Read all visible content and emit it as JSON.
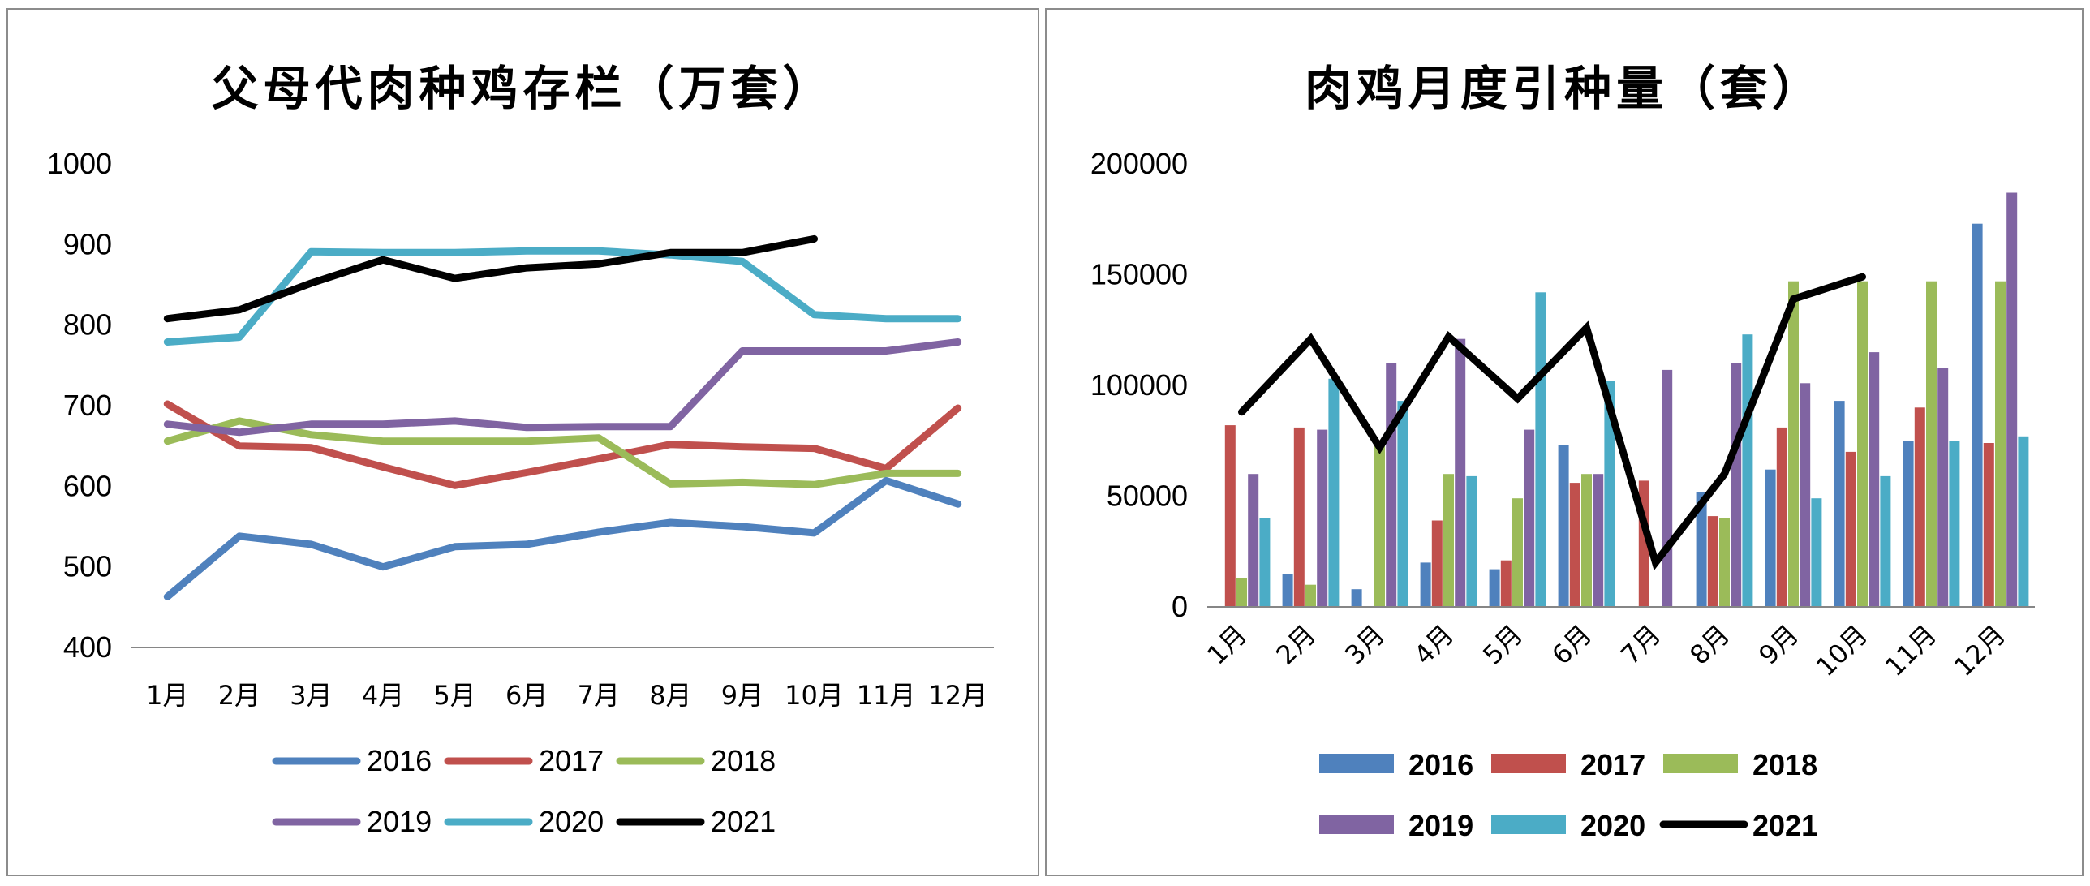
{
  "chart_data": [
    {
      "type": "line",
      "title": "父母代肉种鸡存栏（万套）",
      "categories": [
        "1月",
        "2月",
        "3月",
        "4月",
        "5月",
        "6月",
        "7月",
        "8月",
        "9月",
        "10月",
        "11月",
        "12月"
      ],
      "yticks": [
        "1000",
        "900",
        "800",
        "700",
        "600",
        "500",
        "400"
      ],
      "ylim": [
        400,
        1000
      ],
      "grid": false,
      "legend_position": "bottom",
      "series": [
        {
          "name": "2016",
          "color": "#4f81bd",
          "values": [
            463,
            538,
            528,
            500,
            525,
            528,
            543,
            555,
            550,
            542,
            607,
            578
          ]
        },
        {
          "name": "2017",
          "color": "#c0504d",
          "values": [
            702,
            650,
            648,
            624,
            601,
            617,
            634,
            652,
            649,
            647,
            622,
            697
          ]
        },
        {
          "name": "2018",
          "color": "#9bbb59",
          "values": [
            656,
            681,
            664,
            656,
            656,
            656,
            660,
            603,
            605,
            602,
            616,
            616
          ]
        },
        {
          "name": "2019",
          "color": "#8064a2",
          "values": [
            677,
            667,
            677,
            677,
            681,
            673,
            674,
            674,
            768,
            768,
            768,
            779
          ]
        },
        {
          "name": "2020",
          "color": "#4bacc6",
          "values": [
            779,
            785,
            891,
            890,
            890,
            892,
            892,
            887,
            879,
            813,
            808,
            808
          ]
        },
        {
          "name": "2021",
          "color": "#000000",
          "values": [
            808,
            819,
            852,
            881,
            858,
            871,
            876,
            890,
            890,
            907,
            null,
            null
          ]
        }
      ]
    },
    {
      "type": "bar",
      "title": "肉鸡月度引种量（套）",
      "categories": [
        "1月",
        "2月",
        "3月",
        "4月",
        "5月",
        "6月",
        "7月",
        "8月",
        "9月",
        "10月",
        "11月",
        "12月"
      ],
      "yticks": [
        "200000",
        "150000",
        "100000",
        "50000",
        "0"
      ],
      "ylim": [
        0,
        200000
      ],
      "grid": false,
      "legend_position": "bottom",
      "series": [
        {
          "name": "2016",
          "type": "bar",
          "color": "#4f81bd",
          "values": [
            0,
            15000,
            8000,
            20000,
            17000,
            73000,
            0,
            52000,
            62000,
            93000,
            75000,
            173000
          ]
        },
        {
          "name": "2017",
          "type": "bar",
          "color": "#c0504d",
          "values": [
            82000,
            81000,
            0,
            39000,
            21000,
            56000,
            57000,
            41000,
            81000,
            70000,
            90000,
            74000
          ]
        },
        {
          "name": "2018",
          "type": "bar",
          "color": "#9bbb59",
          "values": [
            13000,
            10000,
            73000,
            60000,
            49000,
            60000,
            0,
            40000,
            147000,
            147000,
            147000,
            147000
          ]
        },
        {
          "name": "2019",
          "type": "bar",
          "color": "#8064a2",
          "values": [
            60000,
            80000,
            110000,
            121000,
            80000,
            60000,
            107000,
            110000,
            101000,
            115000,
            108000,
            187000
          ]
        },
        {
          "name": "2020",
          "type": "bar",
          "color": "#4bacc6",
          "values": [
            40000,
            103000,
            93000,
            59000,
            142000,
            102000,
            0,
            123000,
            49000,
            59000,
            75000,
            77000
          ]
        },
        {
          "name": "2021",
          "type": "line",
          "color": "#000000",
          "values": [
            88000,
            121000,
            72000,
            122000,
            94000,
            126000,
            20000,
            60000,
            139000,
            149000,
            null,
            null
          ]
        }
      ]
    }
  ]
}
